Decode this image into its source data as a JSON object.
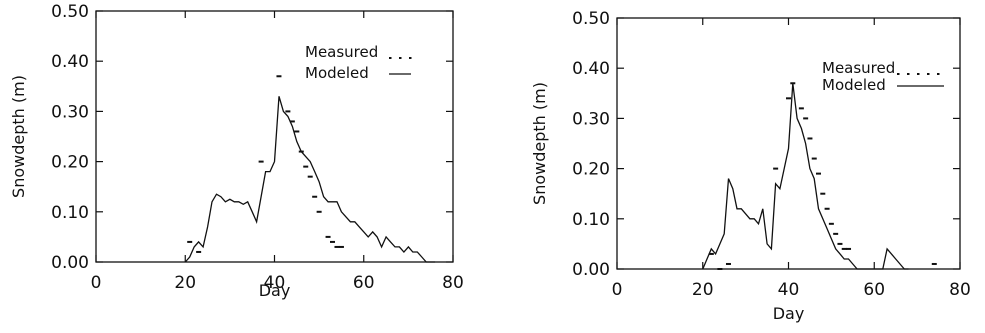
{
  "chart_data": [
    {
      "type": "line",
      "xlabel": "Day",
      "ylabel": "Snowdepth  (m)",
      "xlim": [
        0,
        80
      ],
      "ylim": [
        0.0,
        0.5
      ],
      "xticks": [
        "0",
        "20",
        "40",
        "60",
        "80"
      ],
      "yticks": [
        "0.00",
        "0.10",
        "0.20",
        "0.30",
        "0.40",
        "0.50"
      ],
      "legend_position": "top-right",
      "series": [
        {
          "name": "Modeled",
          "style": "solid",
          "x": [
            20,
            21,
            22,
            23,
            24,
            25,
            26,
            27,
            28,
            29,
            30,
            31,
            32,
            33,
            34,
            35,
            36,
            37,
            38,
            39,
            40,
            41,
            42,
            43,
            44,
            45,
            46,
            47,
            48,
            49,
            50,
            51,
            52,
            53,
            54,
            55,
            56,
            57,
            58,
            59,
            60,
            61,
            62,
            63,
            64,
            65,
            66,
            67,
            68,
            69,
            70,
            71,
            72,
            73,
            74,
            75,
            76
          ],
          "y": [
            0.0,
            0.01,
            0.03,
            0.04,
            0.03,
            0.07,
            0.12,
            0.135,
            0.13,
            0.12,
            0.125,
            0.12,
            0.12,
            0.115,
            0.12,
            0.1,
            0.08,
            0.13,
            0.18,
            0.18,
            0.2,
            0.33,
            0.3,
            0.29,
            0.27,
            0.24,
            0.22,
            0.21,
            0.2,
            0.18,
            0.16,
            0.13,
            0.12,
            0.12,
            0.12,
            0.1,
            0.09,
            0.08,
            0.08,
            0.07,
            0.06,
            0.05,
            0.06,
            0.05,
            0.03,
            0.05,
            0.04,
            0.03,
            0.03,
            0.02,
            0.03,
            0.02,
            0.02,
            0.01,
            0.0,
            0.0,
            0.0
          ]
        },
        {
          "name": "Measured",
          "style": "dots",
          "x": [
            21,
            23,
            37,
            41,
            43,
            44,
            45,
            46,
            47,
            48,
            49,
            50,
            52,
            53,
            54,
            55
          ],
          "y": [
            0.04,
            0.02,
            0.2,
            0.37,
            0.3,
            0.28,
            0.26,
            0.22,
            0.19,
            0.17,
            0.13,
            0.1,
            0.05,
            0.04,
            0.03,
            0.03
          ]
        }
      ]
    },
    {
      "type": "line",
      "xlabel": "Day",
      "ylabel": "Snowdepth  (m)",
      "xlim": [
        0,
        80
      ],
      "ylim": [
        0.0,
        0.5
      ],
      "xticks": [
        "0",
        "20",
        "40",
        "60",
        "80"
      ],
      "yticks": [
        "0.00",
        "0.10",
        "0.20",
        "0.30",
        "0.40",
        "0.50"
      ],
      "legend_position": "top-right",
      "series": [
        {
          "name": "Modeled",
          "style": "solid",
          "x": [
            20,
            21,
            22,
            23,
            24,
            25,
            26,
            27,
            28,
            29,
            30,
            31,
            32,
            33,
            34,
            35,
            36,
            37,
            38,
            39,
            40,
            41,
            42,
            43,
            44,
            45,
            46,
            47,
            48,
            49,
            50,
            51,
            52,
            53,
            54,
            55,
            56,
            57,
            58,
            59,
            60,
            61,
            62,
            63,
            64,
            65,
            66,
            67,
            68
          ],
          "y": [
            0.0,
            0.02,
            0.04,
            0.03,
            0.05,
            0.07,
            0.18,
            0.16,
            0.12,
            0.12,
            0.11,
            0.1,
            0.1,
            0.09,
            0.12,
            0.05,
            0.04,
            0.17,
            0.16,
            0.2,
            0.24,
            0.37,
            0.3,
            0.28,
            0.25,
            0.2,
            0.18,
            0.12,
            0.1,
            0.08,
            0.06,
            0.04,
            0.03,
            0.02,
            0.02,
            0.01,
            0.0,
            0.0,
            0.0,
            0.0,
            0.0,
            0.0,
            0.0,
            0.04,
            0.03,
            0.02,
            0.01,
            0.0,
            0.0
          ]
        },
        {
          "name": "Measured",
          "style": "dots",
          "x": [
            22,
            24,
            26,
            37,
            40,
            41,
            43,
            44,
            45,
            46,
            47,
            48,
            49,
            50,
            51,
            52,
            53,
            54,
            74
          ],
          "y": [
            0.03,
            0.0,
            0.01,
            0.2,
            0.34,
            0.37,
            0.32,
            0.3,
            0.26,
            0.22,
            0.19,
            0.15,
            0.12,
            0.09,
            0.07,
            0.05,
            0.04,
            0.04,
            0.01
          ]
        }
      ]
    }
  ]
}
